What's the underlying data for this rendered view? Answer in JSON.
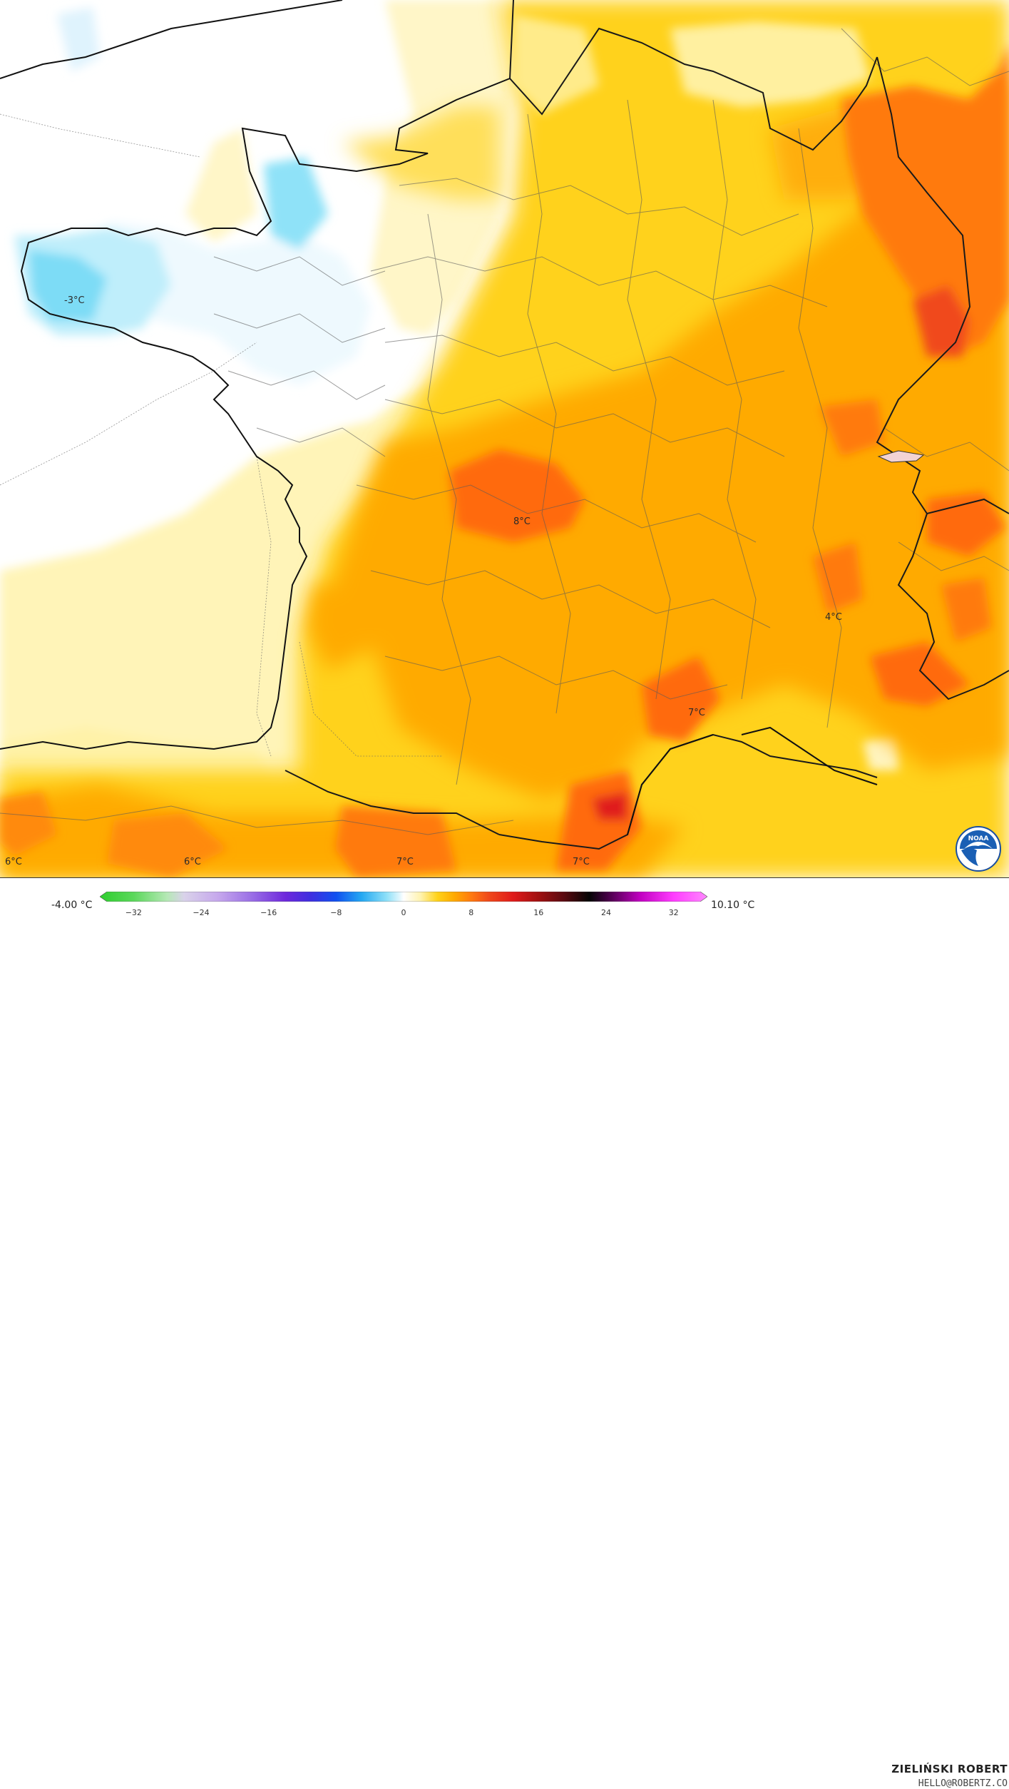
{
  "map": {
    "temperature_labels": [
      {
        "text": "-3°C"
      },
      {
        "text": "8°C"
      },
      {
        "text": "4°C"
      },
      {
        "text": "7°C"
      },
      {
        "text": "6°C"
      },
      {
        "text": "6°C"
      },
      {
        "text": "7°C"
      },
      {
        "text": "7°C"
      }
    ]
  },
  "legend": {
    "min_value": "-4.00 °C",
    "max_value": "10.10 °C",
    "ticks": [
      "−32",
      "−24",
      "−16",
      "−8",
      "0",
      "8",
      "16",
      "24",
      "32"
    ],
    "scale_min": -36,
    "scale_max": 36,
    "stops": [
      {
        "v": -36,
        "c": "#2fce2f"
      },
      {
        "v": -32,
        "c": "#5bd85b"
      },
      {
        "v": -28,
        "c": "#b6e8b6"
      },
      {
        "v": -26,
        "c": "#d9d2ea"
      },
      {
        "v": -22,
        "c": "#c6a8ec"
      },
      {
        "v": -18,
        "c": "#9a6fe6"
      },
      {
        "v": -14,
        "c": "#6e28dc"
      },
      {
        "v": -11,
        "c": "#3e2ee0"
      },
      {
        "v": -8,
        "c": "#1050f0"
      },
      {
        "v": -5,
        "c": "#24a8f2"
      },
      {
        "v": -2,
        "c": "#8fe0f8"
      },
      {
        "v": -0.5,
        "c": "#dff6fd"
      },
      {
        "v": 0,
        "c": "#ffffff"
      },
      {
        "v": 2,
        "c": "#fff3b0"
      },
      {
        "v": 4,
        "c": "#ffd21a"
      },
      {
        "v": 6,
        "c": "#ffaa00"
      },
      {
        "v": 8,
        "c": "#ff7a10"
      },
      {
        "v": 10,
        "c": "#f04a1a"
      },
      {
        "v": 13,
        "c": "#e01a1a"
      },
      {
        "v": 16,
        "c": "#a01010"
      },
      {
        "v": 19,
        "c": "#5a0a10"
      },
      {
        "v": 22,
        "c": "#050505"
      },
      {
        "v": 24,
        "c": "#400040"
      },
      {
        "v": 28,
        "c": "#c000c0"
      },
      {
        "v": 32,
        "c": "#ff3cff"
      },
      {
        "v": 36,
        "c": "#ff88ff"
      }
    ]
  },
  "credit": {
    "name": "ZIELIŃSKI ROBERT",
    "email": "HELLO@ROBERTZ.CO"
  },
  "logo": {
    "icon": "noaa-logo-icon",
    "text": "NOAA"
  }
}
